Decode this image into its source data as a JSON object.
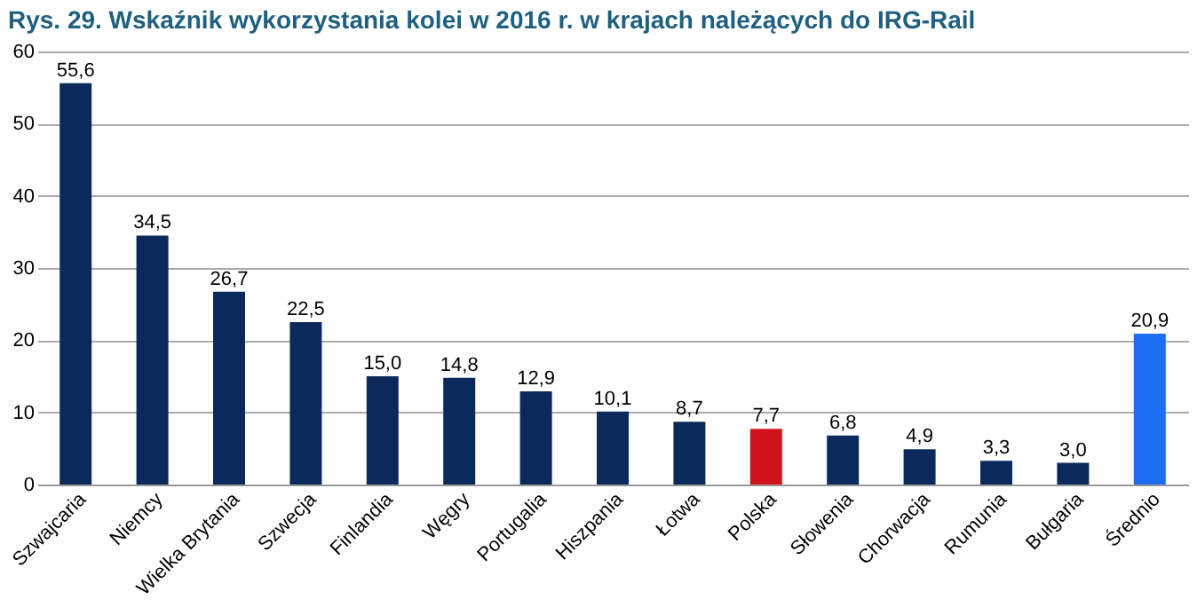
{
  "chart_data": {
    "type": "bar",
    "title": "Rys. 29. Wskaźnik wykorzystania kolei w 2016 r. w krajach należących do IRG-Rail",
    "categories": [
      "Szwajcaria",
      "Niemcy",
      "Wielka Brytania",
      "Szwecja",
      "Finlandia",
      "Węgry",
      "Portugalia",
      "Hiszpania",
      "Łotwa",
      "Polska",
      "Słowenia",
      "Chorwacja",
      "Rumunia",
      "Bułgaria",
      "Średnio"
    ],
    "values": [
      55.6,
      34.5,
      26.7,
      22.5,
      15.0,
      14.8,
      12.9,
      10.1,
      8.7,
      7.7,
      6.8,
      4.9,
      3.3,
      3.0,
      20.9
    ],
    "value_labels": [
      "55,6",
      "34,5",
      "26,7",
      "22,5",
      "15,0",
      "14,8",
      "12,9",
      "10,1",
      "8,7",
      "7,7",
      "6,8",
      "4,9",
      "3,3",
      "3,0",
      "20,9"
    ],
    "colors": [
      "#0b2a5b",
      "#0b2a5b",
      "#0b2a5b",
      "#0b2a5b",
      "#0b2a5b",
      "#0b2a5b",
      "#0b2a5b",
      "#0b2a5b",
      "#0b2a5b",
      "#d0141b",
      "#0b2a5b",
      "#0b2a5b",
      "#0b2a5b",
      "#0b2a5b",
      "#1a6ff0"
    ],
    "ylim": [
      0,
      60
    ],
    "yticks": [
      0,
      10,
      20,
      30,
      40,
      50,
      60
    ],
    "grid": "y"
  }
}
